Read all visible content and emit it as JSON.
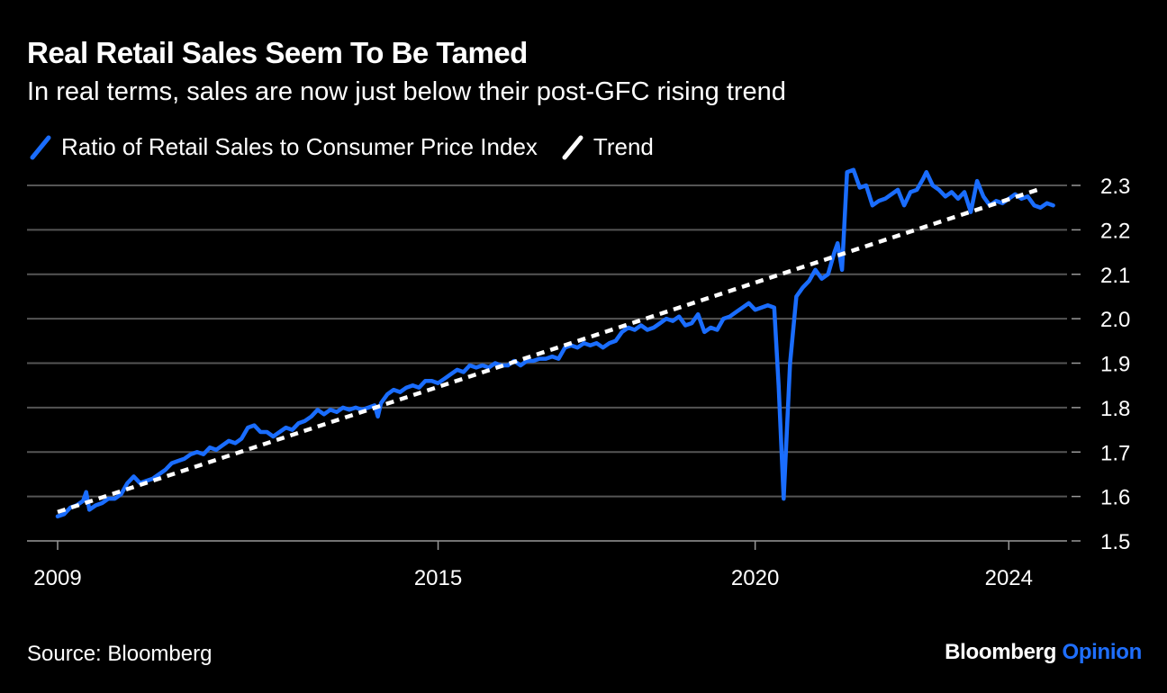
{
  "title": "Real Retail Sales Seem To Be Tamed",
  "subtitle": "In real terms, sales are now just below their post-GFC rising trend",
  "source": "Source: Bloomberg",
  "brand": {
    "name": "Bloomberg",
    "accent": "Opinion"
  },
  "colors": {
    "series": "#1a6dff",
    "trend": "#ffffff",
    "grid": "#555555",
    "background": "#000000"
  },
  "chart_data": {
    "type": "line",
    "x_range": [
      2009.0,
      2024.45
    ],
    "ylim": [
      1.5,
      2.3
    ],
    "y_ticks": [
      1.5,
      1.6,
      1.7,
      1.8,
      1.9,
      2.0,
      2.1,
      2.2,
      2.3
    ],
    "y_tick_labels": [
      "1.5",
      "1.6",
      "1.7",
      "1.8",
      "1.9",
      "2.0",
      "2.1",
      "2.2",
      "2.3"
    ],
    "x_ticks": [
      2009,
      2015,
      2020,
      2024
    ],
    "x_tick_labels": [
      "2009",
      "2015",
      "2020",
      "2024"
    ],
    "grid": "horizontal",
    "legend_position": "top-left",
    "series": [
      {
        "name": "Ratio of Retail Sales to Consumer Price Index",
        "points": [
          [
            2009.0,
            1.555
          ],
          [
            2009.1,
            1.56
          ],
          [
            2009.2,
            1.575
          ],
          [
            2009.3,
            1.58
          ],
          [
            2009.4,
            1.59
          ],
          [
            2009.45,
            1.61
          ],
          [
            2009.5,
            1.57
          ],
          [
            2009.6,
            1.58
          ],
          [
            2009.7,
            1.585
          ],
          [
            2009.8,
            1.595
          ],
          [
            2009.9,
            1.595
          ],
          [
            2010.0,
            1.605
          ],
          [
            2010.1,
            1.63
          ],
          [
            2010.2,
            1.645
          ],
          [
            2010.3,
            1.63
          ],
          [
            2010.4,
            1.635
          ],
          [
            2010.5,
            1.64
          ],
          [
            2010.6,
            1.65
          ],
          [
            2010.7,
            1.66
          ],
          [
            2010.8,
            1.675
          ],
          [
            2010.9,
            1.68
          ],
          [
            2011.0,
            1.685
          ],
          [
            2011.1,
            1.695
          ],
          [
            2011.2,
            1.7
          ],
          [
            2011.3,
            1.695
          ],
          [
            2011.4,
            1.71
          ],
          [
            2011.5,
            1.705
          ],
          [
            2011.6,
            1.715
          ],
          [
            2011.7,
            1.725
          ],
          [
            2011.8,
            1.72
          ],
          [
            2011.9,
            1.73
          ],
          [
            2012.0,
            1.755
          ],
          [
            2012.1,
            1.76
          ],
          [
            2012.2,
            1.745
          ],
          [
            2012.3,
            1.745
          ],
          [
            2012.4,
            1.735
          ],
          [
            2012.5,
            1.745
          ],
          [
            2012.6,
            1.755
          ],
          [
            2012.7,
            1.75
          ],
          [
            2012.8,
            1.765
          ],
          [
            2012.9,
            1.77
          ],
          [
            2013.0,
            1.78
          ],
          [
            2013.1,
            1.795
          ],
          [
            2013.2,
            1.785
          ],
          [
            2013.3,
            1.795
          ],
          [
            2013.4,
            1.79
          ],
          [
            2013.5,
            1.8
          ],
          [
            2013.6,
            1.795
          ],
          [
            2013.7,
            1.8
          ],
          [
            2013.8,
            1.795
          ],
          [
            2013.9,
            1.8
          ],
          [
            2014.0,
            1.805
          ],
          [
            2014.05,
            1.78
          ],
          [
            2014.1,
            1.81
          ],
          [
            2014.2,
            1.83
          ],
          [
            2014.3,
            1.84
          ],
          [
            2014.4,
            1.835
          ],
          [
            2014.5,
            1.845
          ],
          [
            2014.6,
            1.85
          ],
          [
            2014.7,
            1.845
          ],
          [
            2014.8,
            1.86
          ],
          [
            2014.9,
            1.86
          ],
          [
            2015.0,
            1.855
          ],
          [
            2015.1,
            1.865
          ],
          [
            2015.2,
            1.875
          ],
          [
            2015.3,
            1.885
          ],
          [
            2015.4,
            1.88
          ],
          [
            2015.5,
            1.895
          ],
          [
            2015.6,
            1.89
          ],
          [
            2015.7,
            1.895
          ],
          [
            2015.8,
            1.89
          ],
          [
            2015.9,
            1.9
          ],
          [
            2016.0,
            1.895
          ],
          [
            2016.1,
            1.895
          ],
          [
            2016.2,
            1.905
          ],
          [
            2016.3,
            1.895
          ],
          [
            2016.4,
            1.905
          ],
          [
            2016.5,
            1.905
          ],
          [
            2016.6,
            1.91
          ],
          [
            2016.7,
            1.91
          ],
          [
            2016.8,
            1.915
          ],
          [
            2016.9,
            1.91
          ],
          [
            2017.0,
            1.935
          ],
          [
            2017.1,
            1.94
          ],
          [
            2017.2,
            1.935
          ],
          [
            2017.3,
            1.945
          ],
          [
            2017.4,
            1.94
          ],
          [
            2017.5,
            1.945
          ],
          [
            2017.6,
            1.935
          ],
          [
            2017.7,
            1.945
          ],
          [
            2017.8,
            1.95
          ],
          [
            2017.9,
            1.97
          ],
          [
            2018.0,
            1.98
          ],
          [
            2018.1,
            1.975
          ],
          [
            2018.2,
            1.985
          ],
          [
            2018.3,
            1.975
          ],
          [
            2018.4,
            1.98
          ],
          [
            2018.5,
            1.99
          ],
          [
            2018.6,
            2.0
          ],
          [
            2018.7,
            1.995
          ],
          [
            2018.8,
            2.005
          ],
          [
            2018.9,
            1.985
          ],
          [
            2019.0,
            1.99
          ],
          [
            2019.1,
            2.01
          ],
          [
            2019.2,
            1.97
          ],
          [
            2019.3,
            1.98
          ],
          [
            2019.4,
            1.975
          ],
          [
            2019.5,
            2.0
          ],
          [
            2019.6,
            2.005
          ],
          [
            2019.7,
            2.015
          ],
          [
            2019.8,
            2.025
          ],
          [
            2019.9,
            2.035
          ],
          [
            2020.0,
            2.02
          ],
          [
            2020.1,
            2.025
          ],
          [
            2020.2,
            2.03
          ],
          [
            2020.3,
            2.025
          ],
          [
            2020.37,
            1.85
          ],
          [
            2020.45,
            1.595
          ],
          [
            2020.55,
            1.9
          ],
          [
            2020.65,
            2.05
          ],
          [
            2020.75,
            2.07
          ],
          [
            2020.85,
            2.085
          ],
          [
            2020.95,
            2.11
          ],
          [
            2021.05,
            2.09
          ],
          [
            2021.15,
            2.1
          ],
          [
            2021.25,
            2.15
          ],
          [
            2021.3,
            2.17
          ],
          [
            2021.37,
            2.11
          ],
          [
            2021.45,
            2.33
          ],
          [
            2021.55,
            2.335
          ],
          [
            2021.65,
            2.295
          ],
          [
            2021.75,
            2.3
          ],
          [
            2021.85,
            2.255
          ],
          [
            2021.95,
            2.265
          ],
          [
            2022.05,
            2.27
          ],
          [
            2022.15,
            2.28
          ],
          [
            2022.25,
            2.29
          ],
          [
            2022.35,
            2.255
          ],
          [
            2022.45,
            2.285
          ],
          [
            2022.55,
            2.29
          ],
          [
            2022.65,
            2.315
          ],
          [
            2022.7,
            2.33
          ],
          [
            2022.8,
            2.3
          ],
          [
            2022.9,
            2.29
          ],
          [
            2023.0,
            2.275
          ],
          [
            2023.1,
            2.285
          ],
          [
            2023.2,
            2.27
          ],
          [
            2023.3,
            2.285
          ],
          [
            2023.4,
            2.24
          ],
          [
            2023.5,
            2.31
          ],
          [
            2023.6,
            2.275
          ],
          [
            2023.7,
            2.255
          ],
          [
            2023.8,
            2.265
          ],
          [
            2023.9,
            2.26
          ],
          [
            2024.0,
            2.27
          ],
          [
            2024.1,
            2.28
          ],
          [
            2024.2,
            2.27
          ],
          [
            2024.3,
            2.275
          ],
          [
            2024.4,
            2.255
          ],
          [
            2024.5,
            2.25
          ],
          [
            2024.6,
            2.26
          ],
          [
            2024.7,
            2.255
          ]
        ]
      },
      {
        "name": "Trend",
        "points": [
          [
            2009.0,
            1.565
          ],
          [
            2024.45,
            2.29
          ]
        ]
      }
    ]
  }
}
